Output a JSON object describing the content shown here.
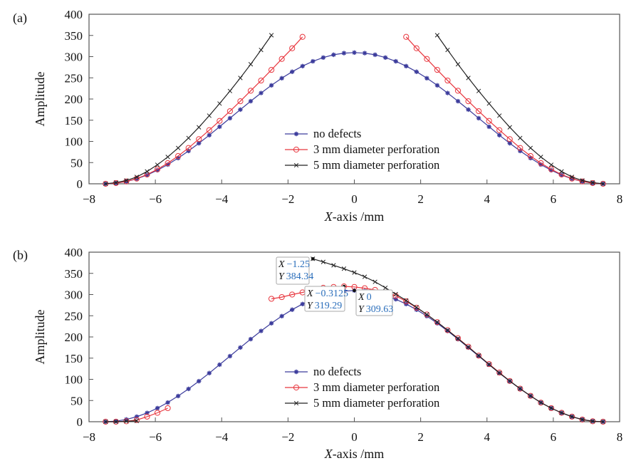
{
  "chart_data": [
    {
      "panel_label": "(a)",
      "type": "line",
      "xlabel_italic": "X",
      "xlabel_rest": "-axis /mm",
      "ylabel": "Amplitude",
      "xlim": [
        -8,
        8
      ],
      "ylim": [
        0,
        400
      ],
      "xticks": [
        -8,
        -6,
        -4,
        -2,
        0,
        2,
        4,
        6,
        8
      ],
      "yticks": [
        0,
        50,
        100,
        150,
        200,
        250,
        300,
        350,
        400
      ],
      "grid": false,
      "legend_position": "center-bottom",
      "series": [
        {
          "name": "no defects",
          "color": "#3c3c9c",
          "marker": "asterisk",
          "segments": [
            {
              "x": [
                -7.5,
                -7.1875,
                -6.875,
                -6.5625,
                -6.25,
                -5.9375,
                -5.625,
                -5.3125,
                -5,
                -4.6875,
                -4.375,
                -4.0625,
                -3.75,
                -3.4375,
                -3.125,
                -2.8125,
                -2.5,
                -2.1875,
                -1.875,
                -1.5625,
                -1.25,
                -0.9375,
                -0.625,
                -0.3125,
                0,
                0.3125,
                0.625,
                0.9375,
                1.25,
                1.5625,
                1.875,
                2.1875,
                2.5,
                2.8125,
                3.125,
                3.4375,
                3.75,
                4.0625,
                4.375,
                4.6875,
                5,
                5.3125,
                5.625,
                5.9375,
                6.25,
                6.5625,
                6.875,
                7.1875,
                7.5
              ],
              "y": [
                0,
                1.3,
                5.3,
                11.8,
                20.7,
                32.0,
                45.3,
                60.6,
                77.4,
                95.6,
                114.7,
                134.6,
                154.8,
                175.0,
                194.9,
                214.1,
                232.2,
                249.1,
                264.3,
                277.6,
                288.9,
                297.8,
                304.4,
                308.3,
                309.6,
                308.3,
                304.4,
                297.8,
                288.9,
                277.6,
                264.3,
                249.1,
                232.2,
                214.1,
                194.9,
                175.0,
                154.8,
                134.6,
                114.7,
                95.6,
                77.4,
                60.6,
                45.3,
                32.0,
                20.7,
                11.8,
                5.3,
                1.3,
                0
              ]
            }
          ]
        },
        {
          "name": "3 mm diameter perforation",
          "color": "#e8373f",
          "marker": "circle",
          "segments": [
            {
              "x": [
                -7.5,
                -7.1875,
                -6.875,
                -6.5625,
                -6.25,
                -5.9375,
                -5.625,
                -5.3125,
                -5,
                -4.6875,
                -4.375,
                -4.0625,
                -3.75,
                -3.4375,
                -3.125,
                -2.8125,
                -2.5,
                -2.1875,
                -1.875,
                -1.5625
              ],
              "y": [
                0,
                1.7,
                5.6,
                12.3,
                21.8,
                34.2,
                48.7,
                65.5,
                84.5,
                105.3,
                126.5,
                148.4,
                171.3,
                194.8,
                219.5,
                243.6,
                268.8,
                294.5,
                319.7,
                346.6
              ]
            },
            {
              "x": [
                1.5625,
                1.875,
                2.1875,
                2.5,
                2.8125,
                3.125,
                3.4375,
                3.75,
                4.0625,
                4.375,
                4.6875,
                5,
                5.3125,
                5.625,
                5.9375,
                6.25,
                6.5625,
                6.875,
                7.1875,
                7.5
              ],
              "y": [
                346.6,
                319.7,
                294.5,
                268.8,
                243.6,
                219.5,
                194.8,
                171.3,
                148.4,
                126.5,
                105.3,
                84.5,
                65.5,
                48.7,
                34.2,
                21.8,
                12.3,
                5.6,
                1.7,
                0
              ]
            }
          ]
        },
        {
          "name": "5 mm diameter perforation",
          "color": "#222222",
          "marker": "cross",
          "segments": [
            {
              "x": [
                -7.5,
                -7.1875,
                -6.875,
                -6.5625,
                -6.25,
                -5.9375,
                -5.625,
                -5.3125,
                -5,
                -4.6875,
                -4.375,
                -4.0625,
                -3.75,
                -3.4375,
                -3.125,
                -2.8125,
                -2.5
              ],
              "y": [
                0,
                2.8,
                7.8,
                16.2,
                29.1,
                44.8,
                63.3,
                84.5,
                108,
                133.3,
                160.7,
                189.3,
                218.9,
                249.7,
                282,
                315.8,
                350.5
              ]
            },
            {
              "x": [
                2.5,
                2.8125,
                3.125,
                3.4375,
                3.75,
                4.0625,
                4.375,
                4.6875,
                5,
                5.3125,
                5.625,
                5.9375,
                6.25,
                6.5625,
                6.875,
                7.1875,
                7.5
              ],
              "y": [
                350.5,
                315.8,
                282,
                249.7,
                218.9,
                189.3,
                160.7,
                133.3,
                108,
                84.5,
                63.3,
                44.8,
                29.1,
                16.2,
                7.8,
                2.8,
                0
              ]
            }
          ]
        }
      ],
      "datatips": []
    },
    {
      "panel_label": "(b)",
      "type": "line",
      "xlabel_italic": "X",
      "xlabel_rest": "-axis /mm",
      "ylabel": "Amplitude",
      "xlim": [
        -8,
        8
      ],
      "ylim": [
        0,
        400
      ],
      "xticks": [
        -8,
        -6,
        -4,
        -2,
        0,
        2,
        4,
        6,
        8
      ],
      "yticks": [
        0,
        50,
        100,
        150,
        200,
        250,
        300,
        350,
        400
      ],
      "grid": false,
      "legend_position": "center-bottom",
      "series": [
        {
          "name": "no defects",
          "color": "#3c3c9c",
          "marker": "asterisk",
          "segments": [
            {
              "x": [
                -7.5,
                -7.1875,
                -6.875,
                -6.5625,
                -6.25,
                -5.9375,
                -5.625,
                -5.3125,
                -5,
                -4.6875,
                -4.375,
                -4.0625,
                -3.75,
                -3.4375,
                -3.125,
                -2.8125,
                -2.5,
                -2.1875,
                -1.875,
                -1.5625,
                -1.25,
                -0.9375,
                -0.625,
                -0.3125,
                0,
                0.3125,
                0.625,
                0.9375,
                1.25,
                1.5625,
                1.875,
                2.1875,
                2.5,
                2.8125,
                3.125,
                3.4375,
                3.75,
                4.0625,
                4.375,
                4.6875,
                5,
                5.3125,
                5.625,
                5.9375,
                6.25,
                6.5625,
                6.875,
                7.1875,
                7.5
              ],
              "y": [
                0,
                1.3,
                5.3,
                11.8,
                20.7,
                32.0,
                45.3,
                60.6,
                77.4,
                95.6,
                114.7,
                134.6,
                154.8,
                175.0,
                194.9,
                214.1,
                232.2,
                249.1,
                264.3,
                277.6,
                288.9,
                297.8,
                304.4,
                308.3,
                309.63,
                308.3,
                304.4,
                297.8,
                288.9,
                277.6,
                264.3,
                249.1,
                232.2,
                214.1,
                194.9,
                175.0,
                154.8,
                134.6,
                114.7,
                95.6,
                77.4,
                60.6,
                45.3,
                32.0,
                20.7,
                11.8,
                5.3,
                1.3,
                0
              ]
            }
          ]
        },
        {
          "name": "3 mm diameter perforation",
          "color": "#e8373f",
          "marker": "circle",
          "segments": [
            {
              "x": [
                -7.5,
                -7.1875,
                -6.875,
                -6.5625,
                -6.25,
                -5.9375,
                -5.625
              ],
              "y": [
                0,
                0,
                1,
                4,
                12,
                21,
                32
              ]
            },
            {
              "x": [
                -2.5,
                -2.1875,
                -1.875,
                -1.5625,
                -1.25,
                -0.9375,
                -0.625,
                -0.3125,
                0,
                0.3125,
                0.625,
                0.9375,
                1.25,
                1.5625,
                1.875,
                2.1875,
                2.5,
                2.8125,
                3.125,
                3.4375,
                3.75,
                4.0625,
                4.375,
                4.6875,
                5,
                5.3125,
                5.625,
                5.9375,
                6.25,
                6.5625,
                6.875,
                7.1875,
                7.5
              ],
              "y": [
                290,
                294,
                300,
                305,
                311,
                316,
                318,
                319.29,
                318,
                315,
                311,
                305,
                297,
                284,
                269,
                253,
                235,
                216,
                197,
                177,
                156,
                136,
                116,
                96,
                78,
                61,
                45,
                32,
                21,
                12,
                5,
                1,
                0
              ]
            }
          ]
        },
        {
          "name": "5 mm diameter perforation",
          "color": "#222222",
          "marker": "cross",
          "segments": [
            {
              "x": [
                -7.5,
                -7.1875,
                -6.875,
                -6.5625
              ],
              "y": [
                0,
                0,
                1,
                2
              ]
            },
            {
              "x": [
                -1.25,
                -0.9375,
                -0.625,
                -0.3125,
                0,
                0.3125,
                0.625,
                0.9375,
                1.25,
                1.5625,
                1.875,
                2.1875,
                2.5,
                2.8125,
                3.125,
                3.4375,
                3.75,
                4.0625,
                4.375,
                4.6875,
                5,
                5.3125,
                5.625,
                5.9375,
                6.25,
                6.5625,
                6.875,
                7.1875,
                7.5
              ],
              "y": [
                384.34,
                377,
                369,
                361,
                352,
                342,
                330,
                316,
                301,
                286,
                270,
                253,
                235,
                216,
                196,
                176,
                156,
                135,
                115,
                96,
                78,
                61,
                45,
                32,
                21,
                12,
                5,
                1,
                0
              ]
            }
          ]
        }
      ],
      "datatips": [
        {
          "x": -1.25,
          "y": 384.34,
          "x_label": "X",
          "x_value": "−1.25",
          "y_label": "Y",
          "y_value": "384.34"
        },
        {
          "x": -0.3125,
          "y": 319.29,
          "x_label": "X",
          "x_value": "−0.3125",
          "y_label": "Y",
          "y_value": "319.29"
        },
        {
          "x": 0,
          "y": 309.63,
          "x_label": "X",
          "x_value": "0",
          "y_label": "Y",
          "y_value": "309.63"
        }
      ],
      "datatip_value_color": "#2a6ebb"
    }
  ]
}
